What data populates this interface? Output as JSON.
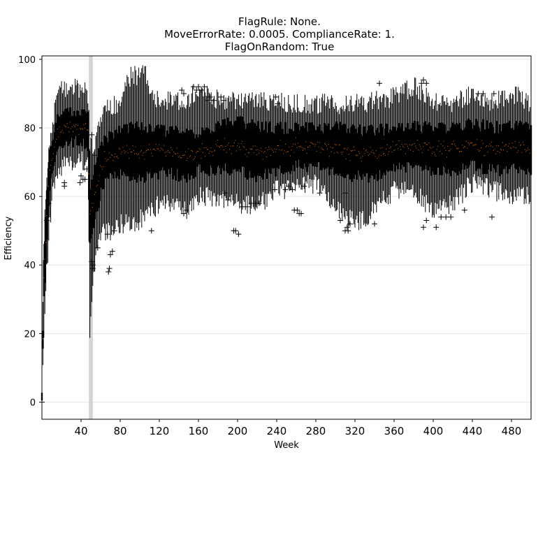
{
  "chart_data": {
    "type": "box",
    "title_lines": [
      "FlagRule: None.",
      "MoveErrorRate: 0.0005. ComplianceRate: 1.",
      "FlagOnRandom: True"
    ],
    "xlabel": "Week",
    "ylabel": "Efficiency",
    "xlim": [
      0,
      500
    ],
    "ylim": [
      -5,
      101
    ],
    "xticks": [
      40,
      80,
      120,
      160,
      200,
      240,
      280,
      320,
      360,
      400,
      440,
      480
    ],
    "xtick_labels": [
      "40",
      "80",
      "120",
      "160",
      "200",
      "240",
      "280",
      "320",
      "360",
      "400",
      "440",
      "480"
    ],
    "yticks": [
      0,
      20,
      40,
      60,
      80,
      100
    ],
    "ytick_labels": [
      "0",
      "20",
      "40",
      "60",
      "80",
      "100"
    ],
    "grid": "horizontal",
    "highlight_band": {
      "x_start": 48,
      "x_end": 52,
      "color": "#cccccc"
    },
    "colors": {
      "box": "#000000",
      "median": "#ff7f0e",
      "flier": "#000000"
    },
    "profile": [
      {
        "week": 0,
        "q1": 0,
        "q3": 2,
        "low": 0,
        "high": 8
      },
      {
        "week": 2,
        "q1": 30,
        "q3": 42,
        "low": 17,
        "high": 48
      },
      {
        "week": 5,
        "q1": 48,
        "q3": 60,
        "low": 38,
        "high": 66
      },
      {
        "week": 8,
        "q1": 62,
        "q3": 72,
        "low": 52,
        "high": 76
      },
      {
        "week": 12,
        "q1": 70,
        "q3": 78,
        "low": 63,
        "high": 84
      },
      {
        "week": 16,
        "q1": 74,
        "q3": 82,
        "low": 67,
        "high": 90
      },
      {
        "week": 24,
        "q1": 76,
        "q3": 84,
        "low": 70,
        "high": 92
      },
      {
        "week": 36,
        "q1": 76,
        "q3": 84,
        "low": 71,
        "high": 92
      },
      {
        "week": 47,
        "q1": 75,
        "q3": 83,
        "low": 70,
        "high": 90
      },
      {
        "week": 49,
        "q1": 45,
        "q3": 62,
        "low": 21,
        "high": 75
      },
      {
        "week": 52,
        "q1": 50,
        "q3": 65,
        "low": 36,
        "high": 75
      },
      {
        "week": 56,
        "q1": 56,
        "q3": 70,
        "low": 44,
        "high": 78
      },
      {
        "week": 62,
        "q1": 64,
        "q3": 76,
        "low": 49,
        "high": 84
      },
      {
        "week": 70,
        "q1": 66,
        "q3": 78,
        "low": 50,
        "high": 86
      },
      {
        "week": 80,
        "q1": 67,
        "q3": 79,
        "low": 52,
        "high": 88
      },
      {
        "week": 90,
        "q1": 66,
        "q3": 80,
        "low": 52,
        "high": 95
      },
      {
        "week": 106,
        "q1": 66,
        "q3": 80,
        "low": 54,
        "high": 96
      },
      {
        "week": 116,
        "q1": 67,
        "q3": 79,
        "low": 57,
        "high": 88
      },
      {
        "week": 130,
        "q1": 67,
        "q3": 79,
        "low": 58,
        "high": 88
      },
      {
        "week": 148,
        "q1": 66,
        "q3": 78,
        "low": 56,
        "high": 88
      },
      {
        "week": 160,
        "q1": 68,
        "q3": 78,
        "low": 60,
        "high": 92
      },
      {
        "week": 180,
        "q1": 68,
        "q3": 80,
        "low": 60,
        "high": 88
      },
      {
        "week": 200,
        "q1": 68,
        "q3": 82,
        "low": 58,
        "high": 88
      },
      {
        "week": 220,
        "q1": 66,
        "q3": 80,
        "low": 57,
        "high": 88
      },
      {
        "week": 240,
        "q1": 68,
        "q3": 80,
        "low": 62,
        "high": 88
      },
      {
        "week": 260,
        "q1": 69,
        "q3": 80,
        "low": 62,
        "high": 87
      },
      {
        "week": 280,
        "q1": 69,
        "q3": 80,
        "low": 64,
        "high": 87
      },
      {
        "week": 300,
        "q1": 68,
        "q3": 80,
        "low": 57,
        "high": 87
      },
      {
        "week": 320,
        "q1": 66,
        "q3": 79,
        "low": 52,
        "high": 87
      },
      {
        "week": 340,
        "q1": 66,
        "q3": 79,
        "low": 56,
        "high": 88
      },
      {
        "week": 360,
        "q1": 69,
        "q3": 80,
        "low": 62,
        "high": 89
      },
      {
        "week": 380,
        "q1": 69,
        "q3": 80,
        "low": 62,
        "high": 92
      },
      {
        "week": 400,
        "q1": 68,
        "q3": 80,
        "low": 56,
        "high": 88
      },
      {
        "week": 420,
        "q1": 68,
        "q3": 80,
        "low": 58,
        "high": 87
      },
      {
        "week": 440,
        "q1": 69,
        "q3": 81,
        "low": 64,
        "high": 90
      },
      {
        "week": 460,
        "q1": 68,
        "q3": 80,
        "low": 62,
        "high": 87
      },
      {
        "week": 480,
        "q1": 68,
        "q3": 80,
        "low": 60,
        "high": 90
      },
      {
        "week": 500,
        "q1": 68,
        "q3": 80,
        "low": 60,
        "high": 87
      }
    ],
    "outliers": [
      {
        "x": 0,
        "y": 0
      },
      {
        "x": 5,
        "y": 53
      },
      {
        "x": 7,
        "y": 58
      },
      {
        "x": 23,
        "y": 64
      },
      {
        "x": 23,
        "y": 63
      },
      {
        "x": 39,
        "y": 64
      },
      {
        "x": 40,
        "y": 66
      },
      {
        "x": 42,
        "y": 65
      },
      {
        "x": 44,
        "y": 65
      },
      {
        "x": 46,
        "y": 68
      },
      {
        "x": 51,
        "y": 78
      },
      {
        "x": 51,
        "y": 41
      },
      {
        "x": 52,
        "y": 39
      },
      {
        "x": 52,
        "y": 40
      },
      {
        "x": 55,
        "y": 72
      },
      {
        "x": 57,
        "y": 45
      },
      {
        "x": 67,
        "y": 49
      },
      {
        "x": 68,
        "y": 38
      },
      {
        "x": 69,
        "y": 39
      },
      {
        "x": 70,
        "y": 43
      },
      {
        "x": 72,
        "y": 44
      },
      {
        "x": 74,
        "y": 50
      },
      {
        "x": 112,
        "y": 50
      },
      {
        "x": 143,
        "y": 91
      },
      {
        "x": 145,
        "y": 90
      },
      {
        "x": 145,
        "y": 55
      },
      {
        "x": 147,
        "y": 56
      },
      {
        "x": 155,
        "y": 92
      },
      {
        "x": 158,
        "y": 91
      },
      {
        "x": 160,
        "y": 92
      },
      {
        "x": 163,
        "y": 91
      },
      {
        "x": 166,
        "y": 92
      },
      {
        "x": 170,
        "y": 88
      },
      {
        "x": 172,
        "y": 89
      },
      {
        "x": 176,
        "y": 88
      },
      {
        "x": 183,
        "y": 89
      },
      {
        "x": 186,
        "y": 88
      },
      {
        "x": 187,
        "y": 61
      },
      {
        "x": 190,
        "y": 59
      },
      {
        "x": 196,
        "y": 50
      },
      {
        "x": 198,
        "y": 50
      },
      {
        "x": 201,
        "y": 49
      },
      {
        "x": 205,
        "y": 57
      },
      {
        "x": 210,
        "y": 57
      },
      {
        "x": 214,
        "y": 58
      },
      {
        "x": 218,
        "y": 58
      },
      {
        "x": 222,
        "y": 58
      },
      {
        "x": 239,
        "y": 89
      },
      {
        "x": 241,
        "y": 87
      },
      {
        "x": 238,
        "y": 62
      },
      {
        "x": 249,
        "y": 62
      },
      {
        "x": 252,
        "y": 63
      },
      {
        "x": 256,
        "y": 62
      },
      {
        "x": 258,
        "y": 56
      },
      {
        "x": 261,
        "y": 56
      },
      {
        "x": 263,
        "y": 55
      },
      {
        "x": 265,
        "y": 55
      },
      {
        "x": 268,
        "y": 63
      },
      {
        "x": 284,
        "y": 61
      },
      {
        "x": 305,
        "y": 53
      },
      {
        "x": 310,
        "y": 61
      },
      {
        "x": 310,
        "y": 50
      },
      {
        "x": 312,
        "y": 51
      },
      {
        "x": 313,
        "y": 50
      },
      {
        "x": 315,
        "y": 52
      },
      {
        "x": 340,
        "y": 52
      },
      {
        "x": 345,
        "y": 93
      },
      {
        "x": 388,
        "y": 93
      },
      {
        "x": 390,
        "y": 94
      },
      {
        "x": 393,
        "y": 93
      },
      {
        "x": 390,
        "y": 51
      },
      {
        "x": 393,
        "y": 53
      },
      {
        "x": 403,
        "y": 51
      },
      {
        "x": 408,
        "y": 54
      },
      {
        "x": 413,
        "y": 54
      },
      {
        "x": 418,
        "y": 54
      },
      {
        "x": 432,
        "y": 56
      },
      {
        "x": 446,
        "y": 90
      },
      {
        "x": 451,
        "y": 90
      },
      {
        "x": 462,
        "y": 90
      },
      {
        "x": 460,
        "y": 54
      }
    ]
  }
}
